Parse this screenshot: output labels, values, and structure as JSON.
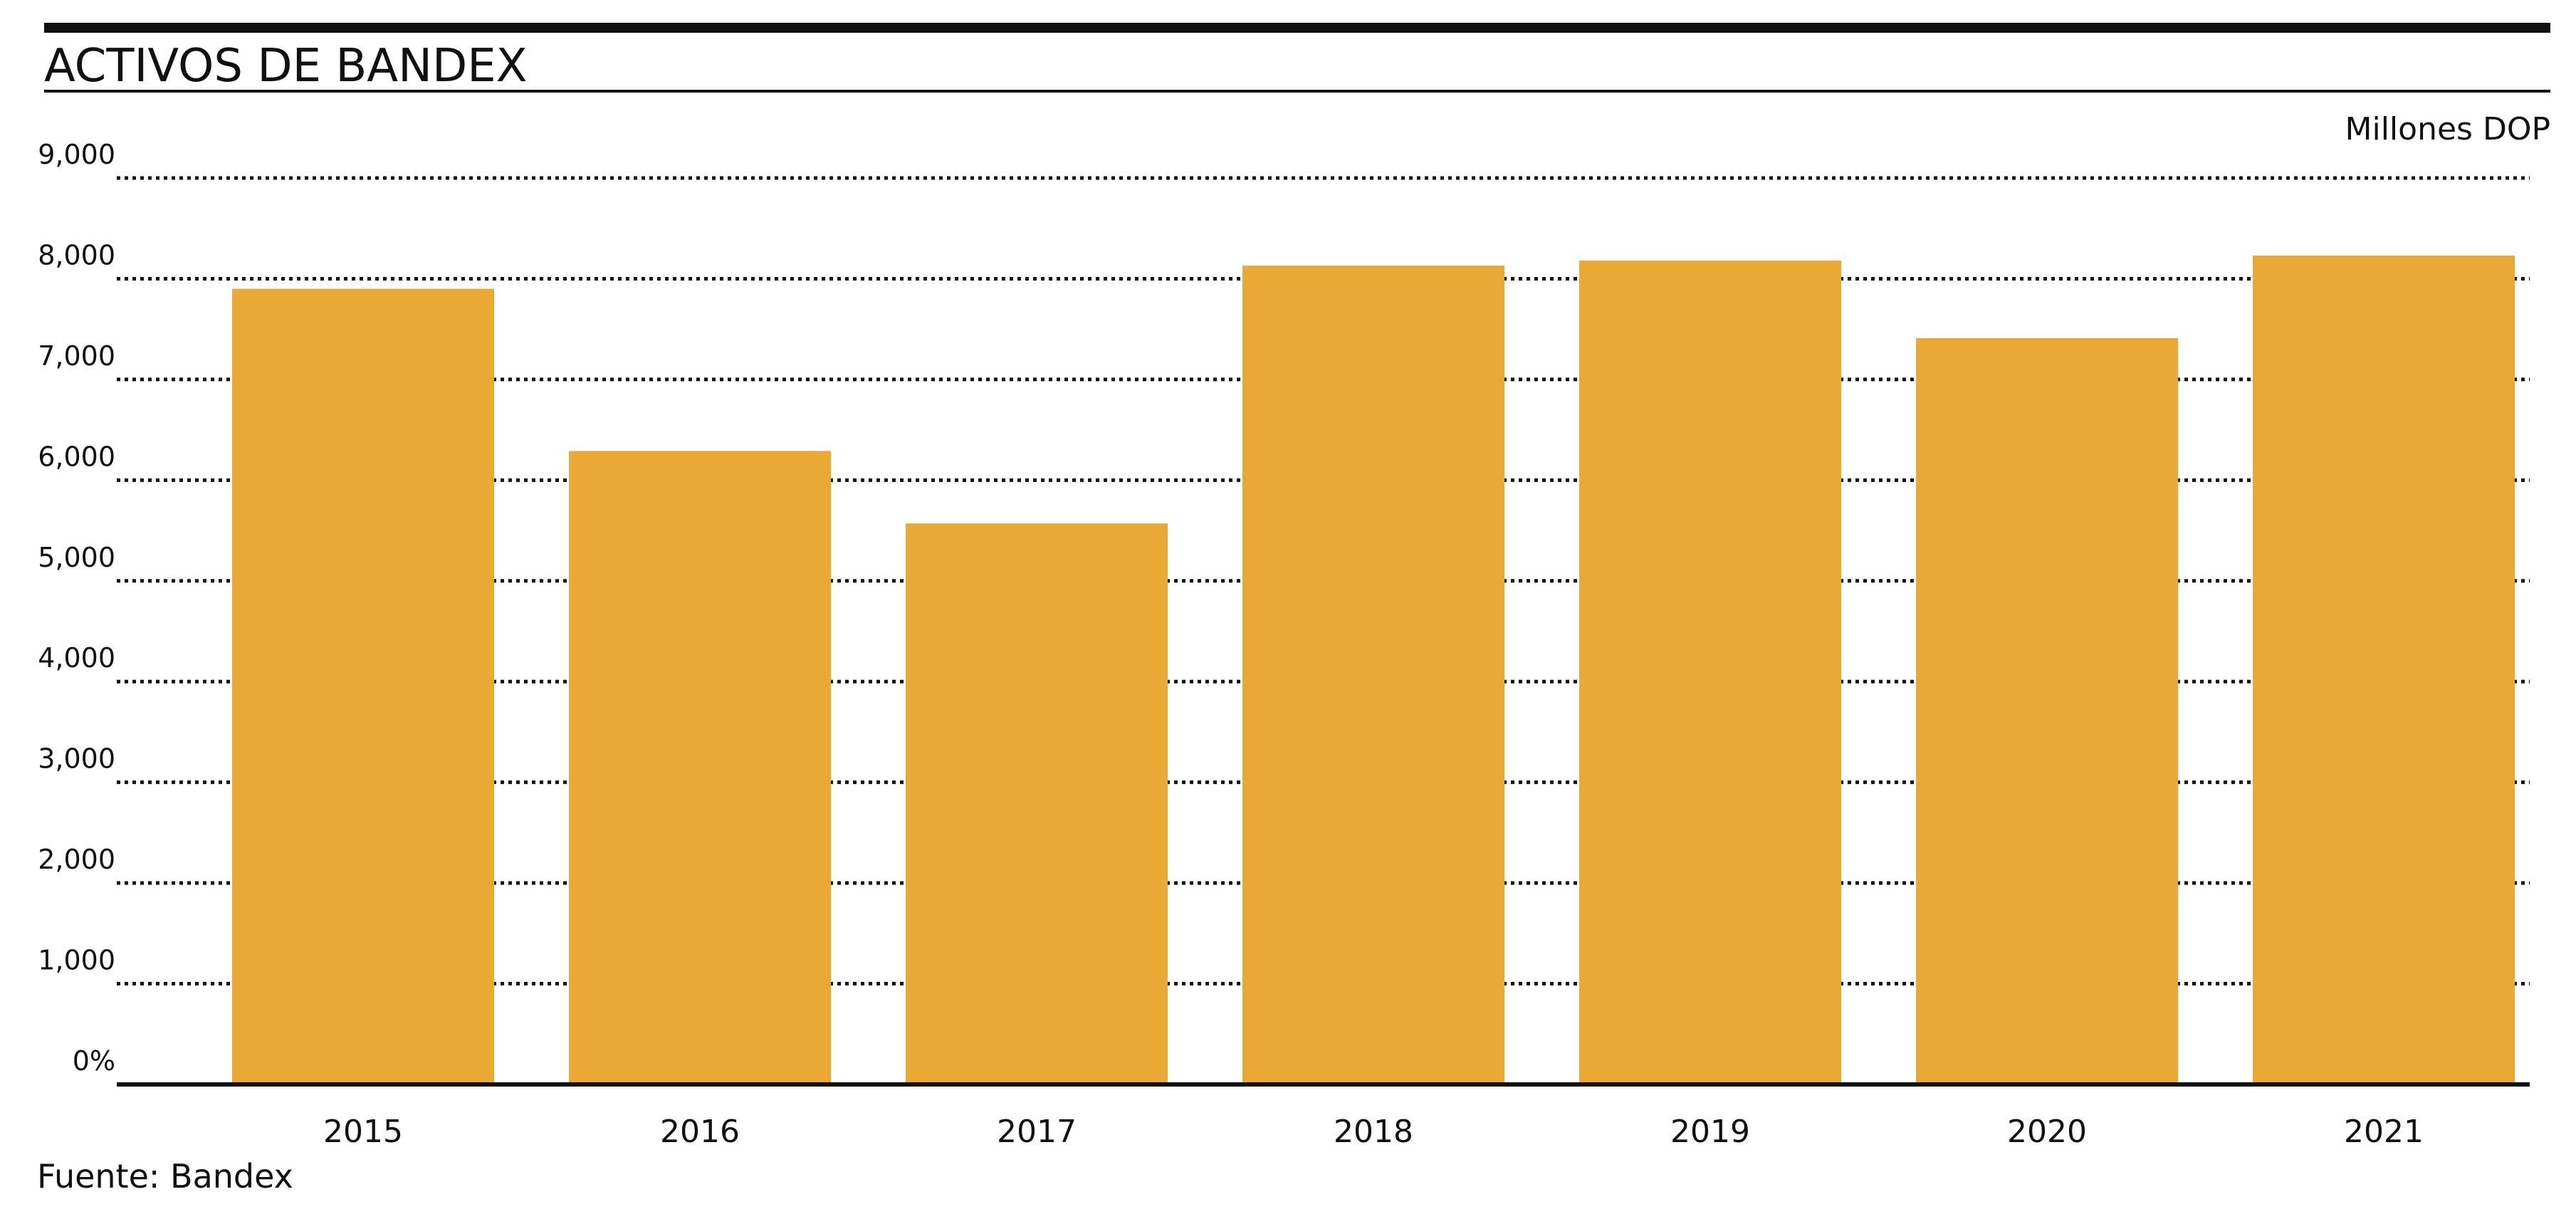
{
  "chart_data": {
    "type": "bar",
    "title": "ACTIVOS DE BANDEX",
    "unit_label": "Millones DOP",
    "source": "Fuente: Bandex",
    "categories": [
      "2015",
      "2016",
      "2017",
      "2018",
      "2019",
      "2020",
      "2021"
    ],
    "values": [
      7900,
      6290,
      5570,
      8130,
      8180,
      7410,
      8230
    ],
    "ylim": [
      0,
      9000
    ],
    "yticks": [
      0,
      1000,
      2000,
      3000,
      4000,
      5000,
      6000,
      7000,
      8000,
      9000
    ],
    "ytick_labels": [
      "0%",
      "1,000",
      "2,000",
      "3,000",
      "4,000",
      "5,000",
      "6,000",
      "7,000",
      "8,000",
      "9,000"
    ],
    "grid": true,
    "bar_color": "#EAA834"
  }
}
